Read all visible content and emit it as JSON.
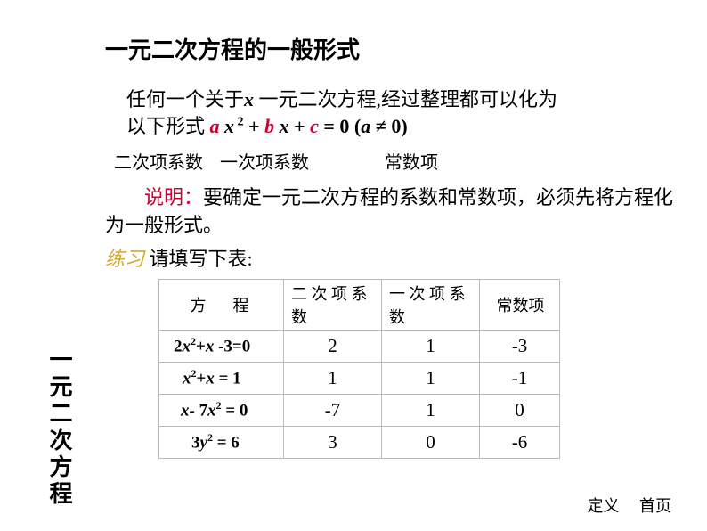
{
  "vertical_title": "一元二次方程",
  "heading": "一元二次方程的一般形式",
  "intro_line1": "任何一个关于",
  "intro_x": "x",
  "intro_line1b": " 一元二次方程,经过整理都可以化为",
  "intro_line2": "以下形式  ",
  "formula": {
    "a": "a",
    "x1": " x",
    "sq": " 2",
    "plus1": " + ",
    "b": "b",
    "x2": " x",
    "plus2": " + ",
    "c": "c",
    "eq": " = 0 (",
    "a2": "a",
    "neq": " ≠ 0)"
  },
  "coef_labels": {
    "c1": "二次项系数",
    "c2": "一次项系数",
    "c3": "常数项"
  },
  "explain_label": "说明：",
  "explain_text": "要确定一元二次方程的系数和常数项，必须先将方程化为一般形式。",
  "practice_label": "练习",
  "practice_text": " 请填写下表:",
  "table": {
    "headers": {
      "h0": "方　程",
      "h1": "二 次 项 系数",
      "h2": "一 次 项 系数",
      "h3": "常数项"
    },
    "rows": [
      {
        "eq_html": "2<span class='it'>x</span><span class='ss'>2</span>+<span class='it'>x </span>-3=0",
        "v1": "2",
        "v2": "1",
        "v3": "-3"
      },
      {
        "eq_html": "<span class='it'>x</span><span class='ss'>2</span>+<span class='it'>x</span> = 1",
        "v1": "1",
        "v2": "1",
        "v3": "-1"
      },
      {
        "eq_html": "<span class='it'>x</span>- 7<span class='it'>x</span><span class='ss'>2</span> = 0",
        "v1": "-7",
        "v2": "1",
        "v3": "0"
      },
      {
        "eq_html": "3<span class='it'>y</span><span class='ss'>2</span> = 6",
        "v1": "3",
        "v2": "0",
        "v3": "-6"
      }
    ]
  },
  "footer": {
    "link1": "定义",
    "link2": "首页"
  },
  "colors": {
    "accent": "#cc0033",
    "practice": "#d4a82a",
    "border": "#bbbbbb",
    "text": "#000000",
    "bg": "#ffffff"
  }
}
